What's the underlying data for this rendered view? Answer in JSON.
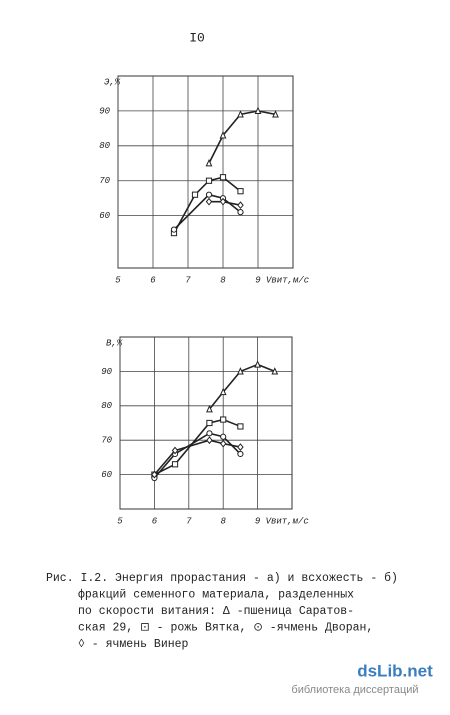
{
  "page_number": "I0",
  "chart_data": [
    {
      "type": "line",
      "ylabel": "Э,%",
      "xlabel": "Vвит,м/с",
      "xlim": [
        5,
        10
      ],
      "ylim": [
        45,
        100
      ],
      "xticks": [
        5,
        6,
        7,
        8,
        9
      ],
      "yticks": [
        60,
        70,
        80,
        90
      ],
      "grid": true,
      "series": [
        {
          "marker": "triangle",
          "color": "#222",
          "x": [
            7.6,
            8,
            8.5,
            9,
            9.5
          ],
          "values": [
            75,
            83,
            89,
            90,
            89
          ]
        },
        {
          "marker": "square",
          "color": "#222",
          "x": [
            6.6,
            7.2,
            7.6,
            8,
            8.5
          ],
          "values": [
            55,
            66,
            70,
            71,
            67
          ]
        },
        {
          "marker": "circle",
          "color": "#222",
          "x": [
            6.6,
            7.6,
            8,
            8.5
          ],
          "values": [
            56,
            66,
            65,
            61
          ]
        },
        {
          "marker": "diamond",
          "color": "#222",
          "x": [
            7.6,
            8,
            8.5
          ],
          "values": [
            64,
            64,
            63
          ]
        }
      ]
    },
    {
      "type": "line",
      "ylabel": "В,%",
      "xlabel": "Vвит,м/с",
      "xlim": [
        5,
        10
      ],
      "ylim": [
        50,
        100
      ],
      "xticks": [
        5,
        6,
        7,
        8,
        9
      ],
      "yticks": [
        60,
        70,
        80,
        90
      ],
      "grid": true,
      "series": [
        {
          "marker": "triangle",
          "color": "#222",
          "x": [
            7.6,
            8,
            8.5,
            9,
            9.5
          ],
          "values": [
            79,
            84,
            90,
            92,
            90
          ]
        },
        {
          "marker": "square",
          "color": "#222",
          "x": [
            6,
            6.6,
            7.6,
            8,
            8.5
          ],
          "values": [
            60,
            63,
            75,
            76,
            74
          ]
        },
        {
          "marker": "circle",
          "color": "#222",
          "x": [
            6,
            6.6,
            7.6,
            8,
            8.5
          ],
          "values": [
            59,
            66,
            72,
            71,
            66
          ]
        },
        {
          "marker": "diamond",
          "color": "#222",
          "x": [
            6,
            6.6,
            7.6,
            8,
            8.5
          ],
          "values": [
            60,
            67,
            70,
            69,
            68
          ]
        }
      ]
    }
  ],
  "caption": [
    "Рис. I.2. Энергия прорастания - а) и всхожесть - б)",
    "фракций семенного материала, разделенных",
    "по скорости витания: Δ -пшеница Саратов-",
    "ская 29, ⊡ - рожь Вятка, ⊙ -ячмень Дворан,",
    "◊ - ячмень Винер"
  ],
  "watermark": {
    "brand": "dsLib.net",
    "tagline": "библиотека диссертаций"
  }
}
